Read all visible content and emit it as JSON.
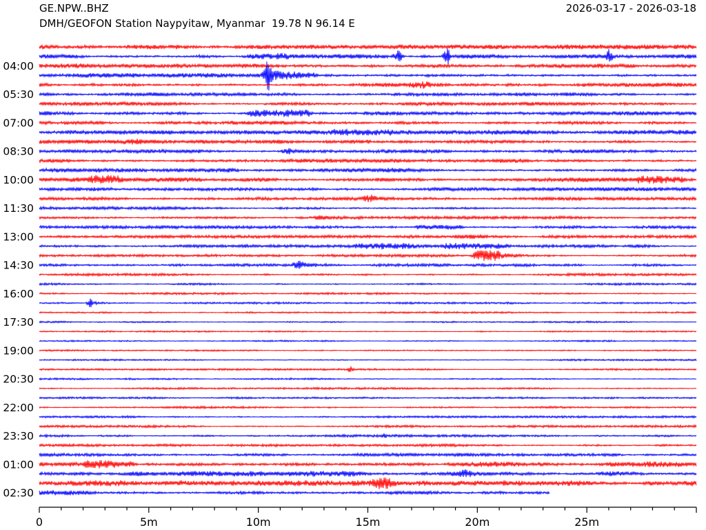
{
  "header": {
    "station_code": "GE.NPW..BHZ",
    "date_range": "2026-03-17 - 2026-03-18",
    "station_desc": "DMH/GEOFON Station Naypyitaw, Myanmar  19.78 N 96.14 E"
  },
  "chart_data": {
    "type": "line",
    "subtype": "helicorder-dayplot",
    "title": "GE.NPW..BHZ",
    "subtitle": "DMH/GEOFON Station Naypyitaw, Myanmar  19.78 N 96.14 E",
    "date_range": "2026-03-17 - 2026-03-18",
    "minutes_per_row": 30,
    "x_axis": {
      "ticks": [
        {
          "min": 0,
          "label": "0"
        },
        {
          "min": 5,
          "label": "5m"
        },
        {
          "min": 10,
          "label": "10m"
        },
        {
          "min": 15,
          "label": "15m"
        },
        {
          "min": 20,
          "label": "20m"
        },
        {
          "min": 25,
          "label": "25m"
        }
      ],
      "minor_tick_every_min": 1,
      "range_min": [
        0,
        30
      ]
    },
    "colors": {
      "trace_odd": "#ff0000",
      "trace_even": "#0000ff",
      "axis": "#000000",
      "text": "#000000"
    },
    "rows": [
      {
        "time": "03:00",
        "labeled": false,
        "amp": 2.3,
        "events": []
      },
      {
        "time": "03:30",
        "labeled": false,
        "amp": 2.2,
        "events": [
          {
            "type": "band",
            "t0": 9.7,
            "t1": 11.5,
            "amp": 1.8
          },
          {
            "type": "spike",
            "t": 16.4,
            "w": 0.12,
            "amp": 9
          },
          {
            "type": "spike",
            "t": 18.6,
            "w": 0.1,
            "amp": 12
          },
          {
            "type": "spike",
            "t": 26.0,
            "w": 0.12,
            "amp": 9
          }
        ]
      },
      {
        "time": "04:00",
        "labeled": true,
        "amp": 2.2,
        "events": []
      },
      {
        "time": "04:30",
        "labeled": false,
        "amp": 2.2,
        "events": [
          {
            "type": "spike",
            "t": 10.42,
            "w": 0.1,
            "amp": 26
          },
          {
            "type": "decay",
            "t": 10.5,
            "tau": 1.2,
            "amp": 4
          },
          {
            "type": "band",
            "t0": 10.8,
            "t1": 12.5,
            "amp": 2
          }
        ]
      },
      {
        "time": "05:00",
        "labeled": false,
        "amp": 2.1,
        "events": [
          {
            "type": "spike",
            "t": 17.45,
            "w": 0.25,
            "amp": 4
          }
        ]
      },
      {
        "time": "05:30",
        "labeled": true,
        "amp": 1.9,
        "events": []
      },
      {
        "time": "06:00",
        "labeled": false,
        "amp": 1.9,
        "events": []
      },
      {
        "time": "06:30",
        "labeled": false,
        "amp": 2.0,
        "events": [
          {
            "type": "band",
            "t0": 9.7,
            "t1": 12.3,
            "amp": 4
          }
        ]
      },
      {
        "time": "07:00",
        "labeled": true,
        "amp": 1.9,
        "events": []
      },
      {
        "time": "07:30",
        "labeled": false,
        "amp": 2.2,
        "events": [
          {
            "type": "band",
            "t0": 13.5,
            "t1": 16.0,
            "amp": 1.5
          },
          {
            "type": "band",
            "t0": 20.5,
            "t1": 22.3,
            "amp": 1.5
          }
        ]
      },
      {
        "time": "08:00",
        "labeled": false,
        "amp": 2.0,
        "events": [
          {
            "type": "spike",
            "t": 4.3,
            "w": 0.3,
            "amp": 2.5
          }
        ]
      },
      {
        "time": "08:30",
        "labeled": true,
        "amp": 1.9,
        "events": [
          {
            "type": "spike",
            "t": 11.3,
            "w": 0.15,
            "amp": 3.5
          },
          {
            "type": "decay",
            "t": 11.35,
            "tau": 0.5,
            "amp": 1.5
          }
        ]
      },
      {
        "time": "09:00",
        "labeled": false,
        "amp": 2.0,
        "events": []
      },
      {
        "time": "09:30",
        "labeled": false,
        "amp": 2.2,
        "events": [
          {
            "type": "band",
            "t0": 7.0,
            "t1": 9.0,
            "amp": 1.5
          }
        ]
      },
      {
        "time": "10:00",
        "labeled": true,
        "amp": 2.3,
        "events": [
          {
            "type": "band",
            "t0": 2.4,
            "t1": 3.6,
            "amp": 3.5
          },
          {
            "type": "band",
            "t0": 27.4,
            "t1": 29.3,
            "amp": 2.5
          }
        ]
      },
      {
        "time": "10:30",
        "labeled": false,
        "amp": 1.9,
        "events": []
      },
      {
        "time": "11:00",
        "labeled": false,
        "amp": 1.8,
        "events": [
          {
            "type": "spike",
            "t": 15.1,
            "w": 0.2,
            "amp": 3.5
          }
        ]
      },
      {
        "time": "11:30",
        "labeled": true,
        "amp": 1.6,
        "events": []
      },
      {
        "time": "12:00",
        "labeled": false,
        "amp": 1.5,
        "events": [
          {
            "type": "spike",
            "t": 12.8,
            "w": 0.2,
            "amp": 2
          }
        ]
      },
      {
        "time": "12:30",
        "labeled": false,
        "amp": 1.6,
        "events": [
          {
            "type": "band",
            "t0": 17.3,
            "t1": 19.2,
            "amp": 2.5
          }
        ]
      },
      {
        "time": "13:00",
        "labeled": true,
        "amp": 1.5,
        "events": [
          {
            "type": "band",
            "t0": 18.9,
            "t1": 20.3,
            "amp": 1.5
          }
        ]
      },
      {
        "time": "13:30",
        "labeled": false,
        "amp": 1.6,
        "events": [
          {
            "type": "band",
            "t0": 14.6,
            "t1": 17.0,
            "amp": 2.2
          },
          {
            "type": "band",
            "t0": 18.6,
            "t1": 21.3,
            "amp": 2.2
          }
        ]
      },
      {
        "time": "14:00",
        "labeled": false,
        "amp": 1.4,
        "events": [
          {
            "type": "band",
            "t0": 20.0,
            "t1": 20.9,
            "amp": 7
          },
          {
            "type": "decay",
            "t": 20.9,
            "tau": 1.0,
            "amp": 3
          }
        ]
      },
      {
        "time": "14:30",
        "labeled": true,
        "amp": 1.5,
        "events": [
          {
            "type": "spike",
            "t": 11.8,
            "w": 0.15,
            "amp": 5
          },
          {
            "type": "decay",
            "t": 11.85,
            "tau": 0.8,
            "amp": 2.5
          }
        ]
      },
      {
        "time": "15:00",
        "labeled": false,
        "amp": 1.3,
        "events": []
      },
      {
        "time": "15:30",
        "labeled": false,
        "amp": 1.2,
        "events": []
      },
      {
        "time": "16:00",
        "labeled": true,
        "amp": 1.1,
        "events": []
      },
      {
        "time": "16:30",
        "labeled": false,
        "amp": 1.0,
        "events": [
          {
            "type": "spike",
            "t": 2.3,
            "w": 0.08,
            "amp": 6
          },
          {
            "type": "decay",
            "t": 2.32,
            "tau": 0.5,
            "amp": 2.5
          }
        ]
      },
      {
        "time": "17:00",
        "labeled": false,
        "amp": 0.9,
        "events": []
      },
      {
        "time": "17:30",
        "labeled": true,
        "amp": 0.9,
        "events": []
      },
      {
        "time": "18:00",
        "labeled": false,
        "amp": 0.8,
        "events": []
      },
      {
        "time": "18:30",
        "labeled": false,
        "amp": 0.8,
        "events": []
      },
      {
        "time": "19:00",
        "labeled": true,
        "amp": 0.8,
        "events": []
      },
      {
        "time": "19:30",
        "labeled": false,
        "amp": 0.9,
        "events": []
      },
      {
        "time": "20:00",
        "labeled": false,
        "amp": 0.9,
        "events": [
          {
            "type": "spike",
            "t": 14.2,
            "w": 0.08,
            "amp": 3.5
          }
        ]
      },
      {
        "time": "20:30",
        "labeled": true,
        "amp": 0.9,
        "events": []
      },
      {
        "time": "21:00",
        "labeled": false,
        "amp": 1.0,
        "events": []
      },
      {
        "time": "21:30",
        "labeled": false,
        "amp": 1.0,
        "events": []
      },
      {
        "time": "22:00",
        "labeled": true,
        "amp": 1.1,
        "events": []
      },
      {
        "time": "22:30",
        "labeled": false,
        "amp": 1.1,
        "events": []
      },
      {
        "time": "23:00",
        "labeled": false,
        "amp": 1.2,
        "events": []
      },
      {
        "time": "23:30",
        "labeled": true,
        "amp": 1.3,
        "events": [
          {
            "type": "spike",
            "t": 15.75,
            "w": 0.06,
            "amp": 4.5
          }
        ]
      },
      {
        "time": "00:00",
        "labeled": false,
        "amp": 1.4,
        "events": []
      },
      {
        "time": "00:30",
        "labeled": false,
        "amp": 1.7,
        "events": []
      },
      {
        "time": "01:00",
        "labeled": true,
        "amp": 2.6,
        "events": [
          {
            "type": "band",
            "t0": 2.2,
            "t1": 4.2,
            "amp": 3
          }
        ]
      },
      {
        "time": "01:30",
        "labeled": false,
        "amp": 2.6,
        "events": [
          {
            "type": "spike",
            "t": 19.35,
            "w": 0.3,
            "amp": 3.5
          }
        ]
      },
      {
        "time": "02:00",
        "labeled": false,
        "amp": 2.7,
        "events": [
          {
            "type": "band",
            "t0": 15.3,
            "t1": 16.0,
            "amp": 4.5
          }
        ]
      },
      {
        "time": "02:30",
        "labeled": true,
        "amp": 2.6,
        "end_min": 23.3,
        "events": []
      }
    ]
  }
}
